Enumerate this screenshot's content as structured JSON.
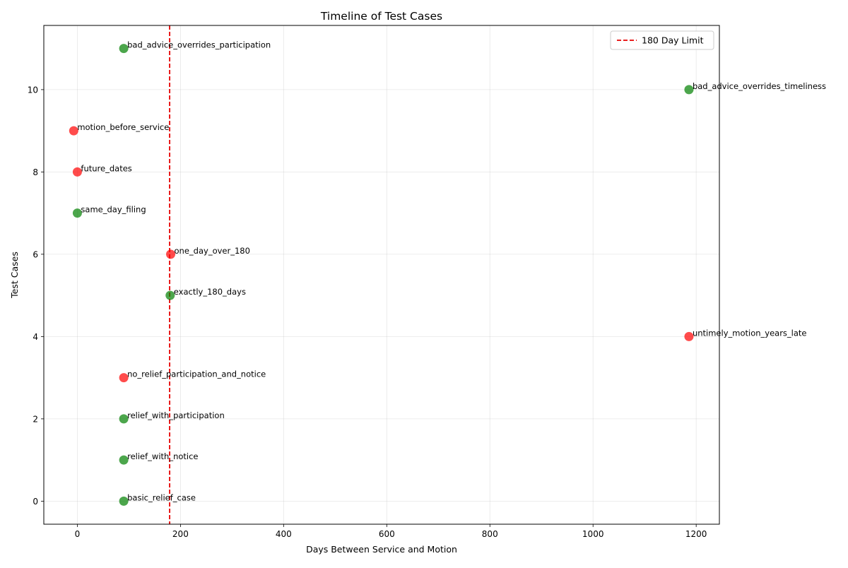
{
  "chart_data": {
    "type": "scatter",
    "title": "Timeline of Test Cases",
    "xlabel": "Days Between Service and Motion",
    "ylabel": "Test Cases",
    "xlim": [
      -65,
      1245
    ],
    "ylim": [
      -0.56,
      11.56
    ],
    "xticks": [
      0,
      200,
      400,
      600,
      800,
      1000,
      1200
    ],
    "yticks": [
      0,
      2,
      4,
      6,
      8,
      10
    ],
    "grid": true,
    "legend_position": "upper right",
    "colors": {
      "pass": "#008000",
      "fail": "#ff0000",
      "limit_line": "#e60000"
    },
    "reference_line": {
      "x": 179,
      "label": "180 Day Limit",
      "style": "dashed",
      "color": "#e60000"
    },
    "points": [
      {
        "x": 90,
        "y": 0,
        "label": "basic_relief_case",
        "status": "pass"
      },
      {
        "x": 90,
        "y": 1,
        "label": "relief_with_notice",
        "status": "pass"
      },
      {
        "x": 90,
        "y": 2,
        "label": "relief_with_participation",
        "status": "pass"
      },
      {
        "x": 90,
        "y": 3,
        "label": "no_relief_participation_and_notice",
        "status": "fail"
      },
      {
        "x": 1186,
        "y": 4,
        "label": "untimely_motion_years_late",
        "status": "fail"
      },
      {
        "x": 180,
        "y": 5,
        "label": "exactly_180_days",
        "status": "pass"
      },
      {
        "x": 181,
        "y": 6,
        "label": "one_day_over_180",
        "status": "fail"
      },
      {
        "x": 0,
        "y": 7,
        "label": "same_day_filing",
        "status": "pass"
      },
      {
        "x": 0,
        "y": 8,
        "label": "future_dates",
        "status": "fail"
      },
      {
        "x": -7,
        "y": 9,
        "label": "motion_before_service",
        "status": "fail"
      },
      {
        "x": 1186,
        "y": 10,
        "label": "bad_advice_overrides_timeliness",
        "status": "pass"
      },
      {
        "x": 90,
        "y": 11,
        "label": "bad_advice_overrides_participation",
        "status": "pass"
      }
    ]
  }
}
